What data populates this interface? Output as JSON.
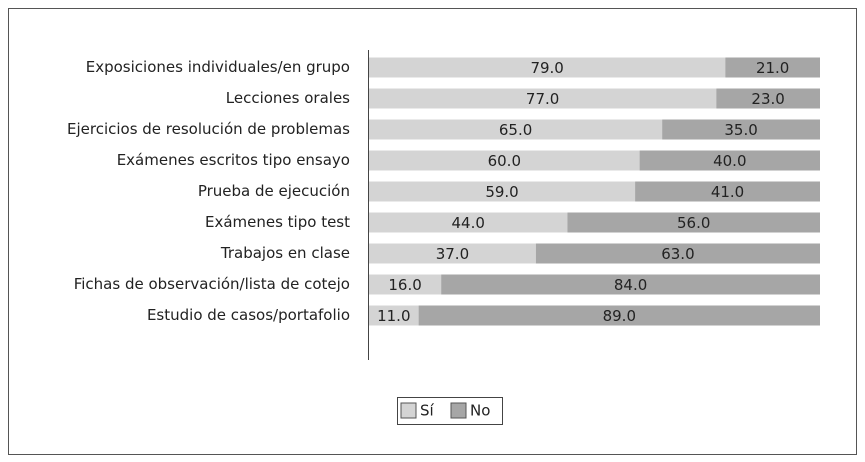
{
  "chart_data": {
    "type": "stacked-barh",
    "categories": [
      "Exposiciones individuales/en grupo",
      "Lecciones orales",
      "Ejercicios de resolución de problemas",
      "Exámenes escritos tipo ensayo",
      "Prueba de ejecución",
      "Exámenes tipo test",
      "Trabajos en clase",
      "Fichas de observación/lista de cotejo",
      "Estudio de casos/portafolio"
    ],
    "series": [
      {
        "name": "Sí",
        "color": "#d4d4d4",
        "values": [
          79,
          77,
          65,
          60,
          59,
          44,
          37,
          16,
          11
        ],
        "value_labels": [
          "79.0",
          "77.0",
          "65.0",
          "60.0",
          "59.0",
          "44.0",
          "37.0",
          "16.0",
          "11.0"
        ]
      },
      {
        "name": "No",
        "color": "#a6a6a6",
        "values": [
          21,
          23,
          35,
          40,
          41,
          56,
          63,
          84,
          89
        ],
        "value_labels": [
          "21.0",
          "23.0",
          "35.0",
          "40.0",
          "41.0",
          "56.0",
          "63.0",
          "84.0",
          "89.0"
        ]
      }
    ],
    "xlim": [
      0,
      100
    ]
  }
}
